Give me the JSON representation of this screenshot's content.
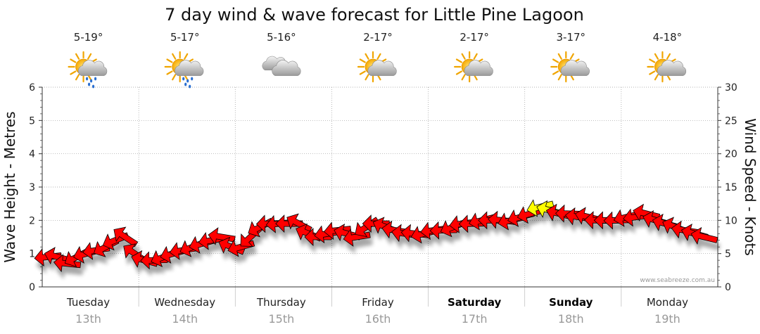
{
  "chart_data": {
    "type": "line",
    "title": "7 day wind & wave forecast for Little Pine Lagoon",
    "ylabel_left": "Wave Height - Metres",
    "ylabel_right": "Wind Speed - Knots",
    "ylim_left": [
      0,
      6
    ],
    "ylim_right": [
      0,
      30
    ],
    "yticks_left": [
      "0",
      "1",
      "2",
      "3",
      "4",
      "5",
      "6"
    ],
    "yticks_right": [
      "0",
      "5",
      "10",
      "15",
      "20",
      "25",
      "30"
    ],
    "grid": true,
    "credit": "www.seabreeze.com.au",
    "days": [
      {
        "name": "Tuesday",
        "date": "13th",
        "temp": "5-19°",
        "icon": "sun-cloud-rain-icon",
        "bold": false
      },
      {
        "name": "Wednesday",
        "date": "14th",
        "temp": "5-17°",
        "icon": "sun-cloud-rain-icon",
        "bold": false
      },
      {
        "name": "Thursday",
        "date": "15th",
        "temp": "5-16°",
        "icon": "cloud-icon",
        "bold": false
      },
      {
        "name": "Friday",
        "date": "16th",
        "temp": "2-17°",
        "icon": "sun-cloud-icon",
        "bold": false
      },
      {
        "name": "Saturday",
        "date": "17th",
        "temp": "2-17°",
        "icon": "sun-cloud-icon",
        "bold": true
      },
      {
        "name": "Sunday",
        "date": "18th",
        "temp": "3-17°",
        "icon": "sun-cloud-icon",
        "bold": true
      },
      {
        "name": "Monday",
        "date": "19th",
        "temp": "4-18°",
        "icon": "sun-cloud-icon",
        "bold": false
      }
    ],
    "series": [
      {
        "kind": "wind",
        "units": "knots",
        "x_units": "days from start of Tuesday 13th",
        "x": [
          0.0,
          0.1,
          0.2,
          0.3,
          0.4,
          0.5,
          0.6,
          0.7,
          0.8,
          0.9,
          1.0,
          1.1,
          1.2,
          1.3,
          1.4,
          1.5,
          1.6,
          1.7,
          1.8,
          1.9,
          2.0,
          2.1,
          2.2,
          2.3,
          2.4,
          2.5,
          2.6,
          2.7,
          2.8,
          2.9,
          3.0,
          3.1,
          3.2,
          3.3,
          3.4,
          3.5,
          3.6,
          3.7,
          3.8,
          3.9,
          4.0,
          4.1,
          4.2,
          4.3,
          4.4,
          4.5,
          4.6,
          4.7,
          4.8,
          4.9,
          5.0,
          5.1,
          5.2,
          5.3,
          5.4,
          5.5,
          5.6,
          5.7,
          5.8,
          5.9,
          6.0,
          6.1,
          6.2,
          6.3,
          6.4,
          6.5,
          6.6,
          6.7,
          6.8
        ],
        "values": [
          4.5,
          4.5,
          3.5,
          4.5,
          5,
          5.5,
          6,
          7,
          7.5,
          5,
          4,
          4,
          4.5,
          5,
          5.5,
          6,
          6.5,
          7,
          7.5,
          6,
          6,
          7.5,
          9,
          9.5,
          9.5,
          9.5,
          9.5,
          8,
          7.5,
          8,
          8.5,
          8,
          7.5,
          9,
          9.5,
          9,
          8.5,
          8,
          8,
          8,
          8.5,
          8.5,
          9,
          9.5,
          9.5,
          10,
          10,
          10,
          10,
          10.5,
          11,
          12,
          11.5,
          11,
          11,
          10.5,
          10.5,
          10,
          10,
          10,
          10.5,
          10.5,
          11,
          10,
          9.5,
          9,
          8.5,
          8,
          7.5
        ],
        "arrow_colors": {
          "default": "#ff0000",
          "strong": "#ffff00"
        }
      }
    ]
  }
}
